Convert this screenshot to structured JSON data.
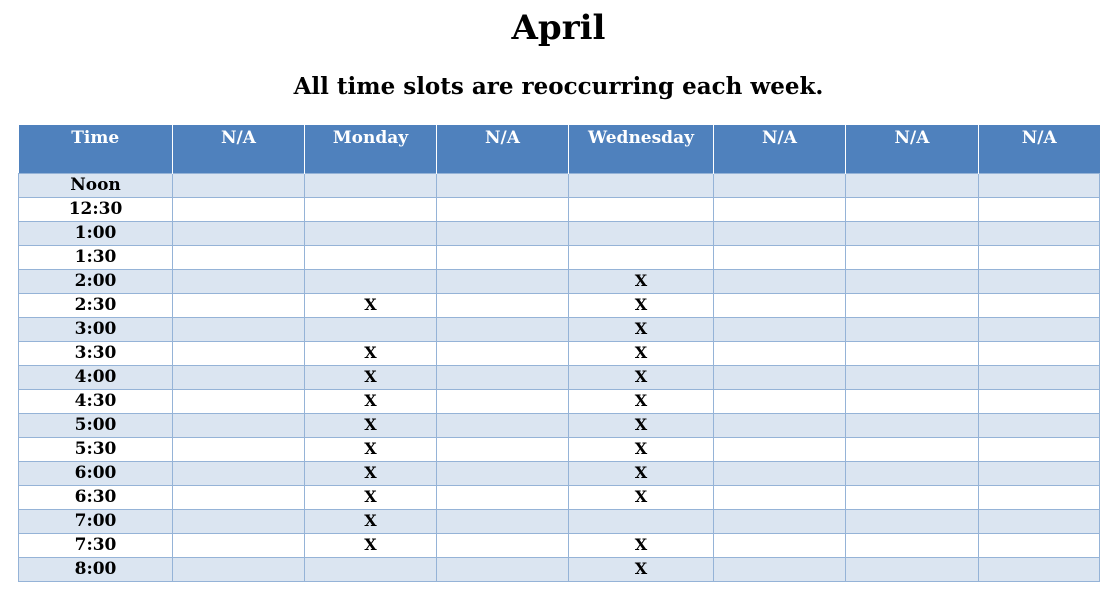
{
  "title": "April",
  "subtitle": "All time slots are reoccurring each week.",
  "colors": {
    "header_bg": "#4f81bd",
    "header_text": "#ffffff",
    "band_row": "#dbe5f1",
    "grid_line": "#95b3d7"
  },
  "columns": [
    "Time",
    "N/A",
    "Monday",
    "N/A",
    "Wednesday",
    "N/A",
    "N/A",
    "N/A"
  ],
  "rows": [
    {
      "time": "Noon",
      "cells": [
        "",
        "",
        "",
        "",
        "",
        "",
        ""
      ]
    },
    {
      "time": "12:30",
      "cells": [
        "",
        "",
        "",
        "",
        "",
        "",
        ""
      ]
    },
    {
      "time": "1:00",
      "cells": [
        "",
        "",
        "",
        "",
        "",
        "",
        ""
      ]
    },
    {
      "time": "1:30",
      "cells": [
        "",
        "",
        "",
        "",
        "",
        "",
        ""
      ]
    },
    {
      "time": "2:00",
      "cells": [
        "",
        "",
        "",
        "X",
        "",
        "",
        ""
      ]
    },
    {
      "time": "2:30",
      "cells": [
        "",
        "X",
        "",
        "X",
        "",
        "",
        ""
      ]
    },
    {
      "time": "3:00",
      "cells": [
        "",
        "",
        "",
        "X",
        "",
        "",
        ""
      ]
    },
    {
      "time": "3:30",
      "cells": [
        "",
        "X",
        "",
        "X",
        "",
        "",
        ""
      ]
    },
    {
      "time": "4:00",
      "cells": [
        "",
        "X",
        "",
        "X",
        "",
        "",
        ""
      ]
    },
    {
      "time": "4:30",
      "cells": [
        "",
        "X",
        "",
        "X",
        "",
        "",
        ""
      ]
    },
    {
      "time": "5:00",
      "cells": [
        "",
        "X",
        "",
        "X",
        "",
        "",
        ""
      ]
    },
    {
      "time": "5:30",
      "cells": [
        "",
        "X",
        "",
        "X",
        "",
        "",
        ""
      ]
    },
    {
      "time": "6:00",
      "cells": [
        "",
        "X",
        "",
        "X",
        "",
        "",
        ""
      ]
    },
    {
      "time": "6:30",
      "cells": [
        "",
        "X",
        "",
        "X",
        "",
        "",
        ""
      ]
    },
    {
      "time": "7:00",
      "cells": [
        "",
        "X",
        "",
        "",
        "",
        "",
        ""
      ]
    },
    {
      "time": "7:30",
      "cells": [
        "",
        "X",
        "",
        "X",
        "",
        "",
        ""
      ]
    },
    {
      "time": "8:00",
      "cells": [
        "",
        "",
        "",
        "X",
        "",
        "",
        ""
      ]
    }
  ]
}
